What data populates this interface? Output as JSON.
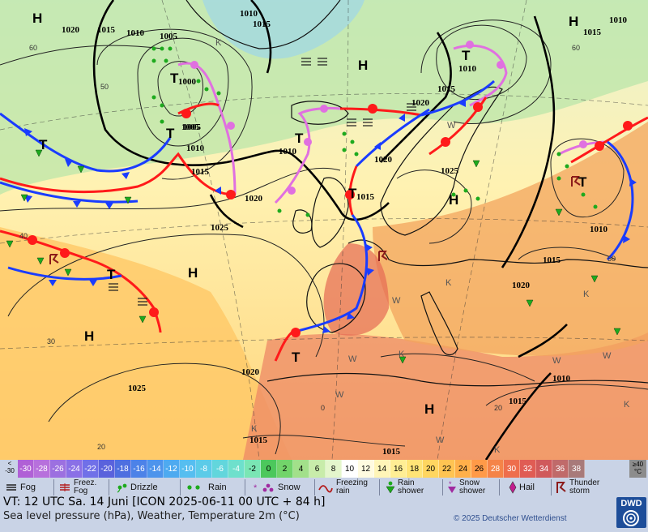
{
  "map": {
    "isobar_labels": [
      "1010",
      "1015",
      "1020",
      "1005",
      "1010",
      "1015",
      "1010",
      "1015",
      "1010",
      "1005",
      "1000",
      "1005",
      "1010",
      "1015",
      "1020",
      "1025",
      "1010",
      "1020",
      "1015",
      "1020",
      "1025",
      "1010",
      "1015",
      "1020",
      "1020",
      "1025",
      "1010",
      "1015",
      "1015",
      "1015",
      "1015"
    ],
    "pressure_centers": [
      "H",
      "H",
      "H",
      "H",
      "H",
      "H",
      "H",
      "T",
      "T",
      "T",
      "T",
      "T",
      "T",
      "T",
      "T",
      "T"
    ],
    "temp_labels": [
      "50",
      "60",
      "40",
      "30",
      "20",
      "0",
      "20",
      "60",
      "50"
    ],
    "weather_letters": [
      "K",
      "W",
      "W",
      "K",
      "K",
      "W",
      "W",
      "K",
      "K",
      "W",
      "W",
      "K",
      "K",
      "W"
    ]
  },
  "legend": {
    "low_unit": [
      "<",
      "-30"
    ],
    "high_unit": [
      "≥40",
      "°C"
    ],
    "scale": [
      {
        "label": "-30",
        "color": "#b060d6"
      },
      {
        "label": "-28",
        "color": "#b770dc"
      },
      {
        "label": "-26",
        "color": "#9c70e0"
      },
      {
        "label": "-24",
        "color": "#8a70e6"
      },
      {
        "label": "-22",
        "color": "#7070e8"
      },
      {
        "label": "-20",
        "color": "#5a62dc"
      },
      {
        "label": "-18",
        "color": "#4e6fe0"
      },
      {
        "label": "-16",
        "color": "#4c82e8"
      },
      {
        "label": "-14",
        "color": "#4d94ec"
      },
      {
        "label": "-12",
        "color": "#4eaaf0"
      },
      {
        "label": "-10",
        "color": "#56bef0"
      },
      {
        "label": "-8",
        "color": "#5ccbe8"
      },
      {
        "label": "-6",
        "color": "#62d6dc"
      },
      {
        "label": "-4",
        "color": "#6ee0cc"
      },
      {
        "label": "-2",
        "color": "#7ae6b4"
      },
      {
        "label": "0",
        "color": "#4cc85c"
      },
      {
        "label": "2",
        "color": "#72d46a"
      },
      {
        "label": "4",
        "color": "#a2e08a"
      },
      {
        "label": "6",
        "color": "#c8ecaa"
      },
      {
        "label": "8",
        "color": "#e4f6cc"
      },
      {
        "label": "10",
        "color": "#ffffff"
      },
      {
        "label": "12",
        "color": "#fffbe0"
      },
      {
        "label": "14",
        "color": "#fff5b8"
      },
      {
        "label": "16",
        "color": "#ffee94"
      },
      {
        "label": "18",
        "color": "#ffe476"
      },
      {
        "label": "20",
        "color": "#ffd660"
      },
      {
        "label": "22",
        "color": "#ffc452"
      },
      {
        "label": "24",
        "color": "#ffb04a"
      },
      {
        "label": "26",
        "color": "#ff9a48"
      },
      {
        "label": "28",
        "color": "#f58448"
      },
      {
        "label": "30",
        "color": "#ee6e4c"
      },
      {
        "label": "32",
        "color": "#e05c54"
      },
      {
        "label": "34",
        "color": "#d05a5c"
      },
      {
        "label": "36",
        "color": "#c06a6a"
      },
      {
        "label": "38",
        "color": "#a87a7a"
      }
    ],
    "weather_types": {
      "fog": "Fog",
      "freez_fog": [
        "Freez.",
        "Fog"
      ],
      "drizzle": "Drizzle",
      "rain": "Rain",
      "snow": "Snow",
      "freezing_rain": [
        "Freezing",
        "rain"
      ],
      "rain_shower": [
        "Rain",
        "shower"
      ],
      "snow_shower": [
        "Snow",
        "shower"
      ],
      "hail": "Hail",
      "thunderstorm": [
        "Thunder",
        "storm"
      ]
    },
    "valid_time": "VT: 12 UTC Sa.  14 Juni [ICON 2025-06-11  00 UTC + 84 h]",
    "description": "Sea level pressure (hPa), Weather, Temperature 2m (°C)",
    "copyright": "© 2025 Deutscher Wetterdienst",
    "logo_text": "DWD"
  },
  "colors": {
    "warm_front": "#ff1a1a",
    "cold_front": "#1a3cff",
    "occlusion": "#e070e0",
    "rain_dot": "#1eaa1e"
  }
}
